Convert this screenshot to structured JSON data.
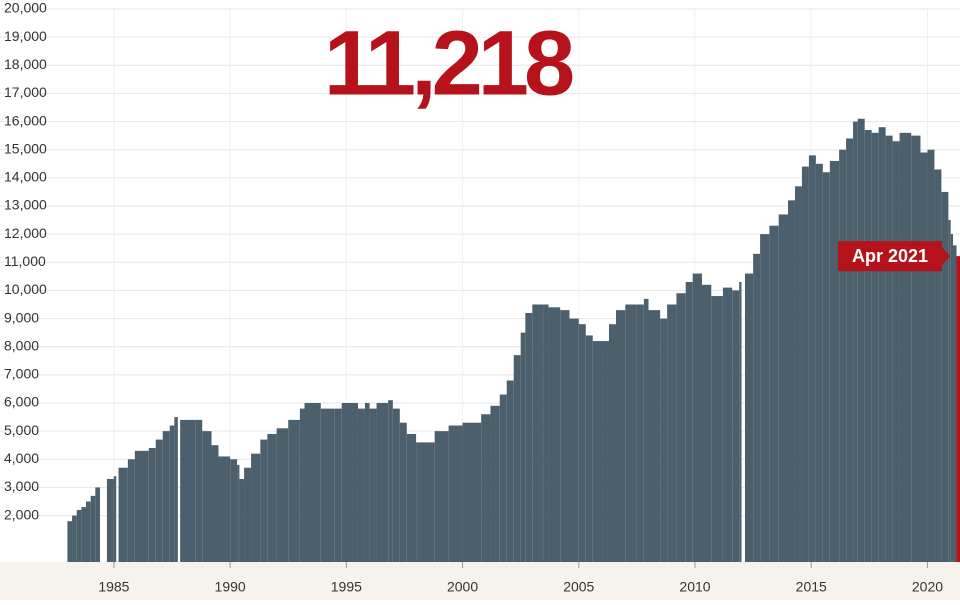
{
  "chart_data": {
    "type": "bar",
    "headline": "11,218",
    "annotation": "Apr 2021",
    "color": "#4c5f6c",
    "highlight_color": "#b5121b",
    "grid": true,
    "xlim": [
      1980.1,
      2021.4
    ],
    "ylim": [
      350,
      20000
    ],
    "xticks": [
      1985,
      1990,
      1995,
      2000,
      2005,
      2010,
      2015,
      2020
    ],
    "yticks": [
      {
        "value": 2000,
        "label": "2,000"
      },
      {
        "value": 3000,
        "label": "3,000"
      },
      {
        "value": 4000,
        "label": "4,000"
      },
      {
        "value": 5000,
        "label": "5,000"
      },
      {
        "value": 6000,
        "label": "6,000"
      },
      {
        "value": 7000,
        "label": "7,000"
      },
      {
        "value": 8000,
        "label": "8,000"
      },
      {
        "value": 9000,
        "label": "9,000"
      },
      {
        "value": 10000,
        "label": "10,000"
      },
      {
        "value": 11000,
        "label": "11,000"
      },
      {
        "value": 12000,
        "label": "12,000"
      },
      {
        "value": 13000,
        "label": "13,000"
      },
      {
        "value": 14000,
        "label": "14,000"
      },
      {
        "value": 15000,
        "label": "15,000"
      },
      {
        "value": 16000,
        "label": "16,000"
      },
      {
        "value": 17000,
        "label": "17,000"
      },
      {
        "value": 18000,
        "label": "18,000"
      },
      {
        "value": 19000,
        "label": "19,000"
      },
      {
        "value": 20000,
        "label": "20,000"
      }
    ],
    "x": [
      1983.0,
      1983.2,
      1983.4,
      1983.6,
      1983.8,
      1984.0,
      1984.2,
      1984.4,
      1984.7,
      1985.0,
      1985.1,
      1985.2,
      1985.6,
      1985.9,
      1986.5,
      1986.8,
      1987.1,
      1987.4,
      1987.6,
      1987.75,
      1987.85,
      1988.5,
      1988.8,
      1989.2,
      1989.5,
      1990.0,
      1990.3,
      1990.4,
      1990.6,
      1990.9,
      1991.3,
      1991.6,
      1992.0,
      1992.5,
      1993.0,
      1993.2,
      1993.9,
      1994.5,
      1994.8,
      1995.5,
      1995.8,
      1996.0,
      1996.3,
      1996.8,
      1997.0,
      1997.3,
      1997.6,
      1998.0,
      1998.6,
      1998.8,
      1999.4,
      2000.0,
      2000.6,
      2000.8,
      2001.2,
      2001.6,
      2001.9,
      2002.2,
      2002.5,
      2002.7,
      2003.0,
      2003.5,
      2003.7,
      2004.2,
      2004.6,
      2005.0,
      2005.3,
      2005.6,
      2006.0,
      2006.3,
      2006.6,
      2007.0,
      2007.5,
      2007.8,
      2008.0,
      2008.5,
      2008.8,
      2009.2,
      2009.6,
      2009.9,
      2010.3,
      2010.7,
      2011.2,
      2011.6,
      2011.9,
      2012.0,
      2012.15,
      2012.5,
      2012.8,
      2013.2,
      2013.6,
      2014.0,
      2014.3,
      2014.6,
      2014.9,
      2015.2,
      2015.5,
      2015.8,
      2016.2,
      2016.5,
      2016.8,
      2017.0,
      2017.3,
      2017.6,
      2017.9,
      2018.2,
      2018.5,
      2018.8,
      2019.3,
      2019.7,
      2020.0,
      2020.3,
      2020.6,
      2020.9,
      2021.0,
      2021.1
    ],
    "values": [
      1800,
      2000,
      2200,
      2300,
      2500,
      2700,
      3000,
      null,
      3300,
      3400,
      null,
      3700,
      4000,
      4300,
      4400,
      4700,
      5000,
      5200,
      5500,
      null,
      5400,
      5400,
      5000,
      4500,
      4100,
      4000,
      3800,
      3300,
      3700,
      4200,
      4700,
      4900,
      5100,
      5400,
      5800,
      6000,
      5800,
      5800,
      6000,
      5800,
      6000,
      5800,
      6000,
      6100,
      5800,
      5300,
      4900,
      4600,
      4600,
      5000,
      5200,
      5300,
      5300,
      5600,
      5900,
      6300,
      6800,
      7700,
      8500,
      9200,
      9500,
      9500,
      9400,
      9300,
      9000,
      8800,
      8400,
      8200,
      8200,
      8800,
      9300,
      9500,
      9500,
      9700,
      9300,
      9000,
      9500,
      9900,
      10300,
      10600,
      10200,
      9800,
      10100,
      10000,
      10300,
      null,
      10600,
      11300,
      12000,
      12300,
      12700,
      13200,
      13700,
      14400,
      14800,
      14500,
      14200,
      14600,
      15000,
      15400,
      16000,
      16100,
      15700,
      15600,
      15800,
      15500,
      15300,
      15600,
      15500,
      14900,
      15000,
      14300,
      13500,
      12500,
      12000,
      11600
    ],
    "current": {
      "x": 2021.25,
      "value": 11218
    }
  }
}
